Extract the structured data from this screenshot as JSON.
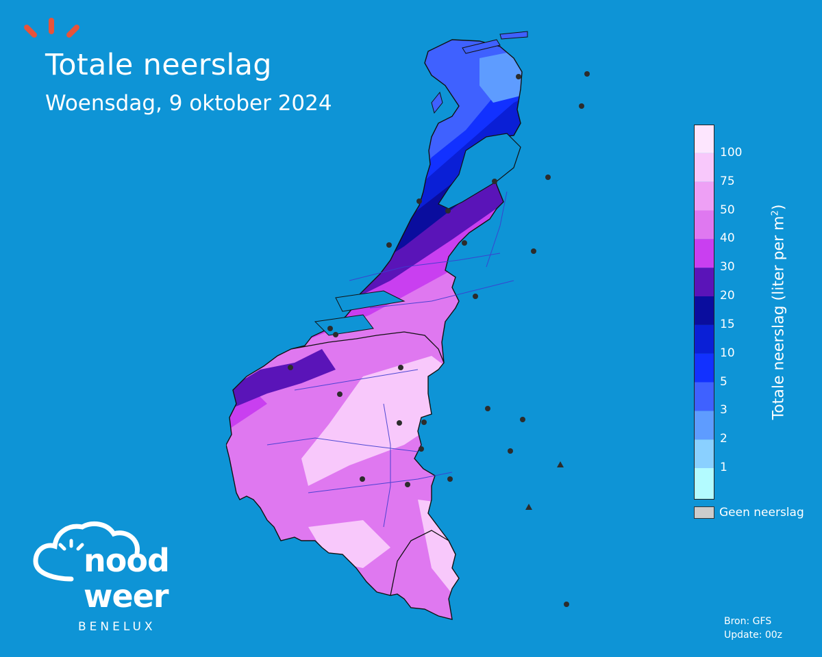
{
  "header": {
    "title": "Totale neerslag",
    "subtitle": "Woensdag, 9 oktober 2024"
  },
  "legend": {
    "title_prefix": "Totale neerslag (liter per m",
    "title_sup": "2",
    "title_suffix": ")",
    "ticks": [
      "1",
      "2",
      "3",
      "5",
      "10",
      "15",
      "20",
      "30",
      "40",
      "50",
      "75",
      "100"
    ],
    "colors": [
      "#b3fbff",
      "#8ad0ff",
      "#5e9cff",
      "#3f61ff",
      "#1231ff",
      "#0a1fd6",
      "#0a0d9e",
      "#5a14b8",
      "#c93ff0",
      "#df78f0",
      "#eea0f5",
      "#f8c8fb",
      "#fde6fe"
    ],
    "no_rain_label": "Geen neerslag",
    "no_rain_color": "#cccccc"
  },
  "logo": {
    "word1": "nood",
    "word2": "weer",
    "sub": "BENELUX",
    "sun_color": "#e8533a"
  },
  "source": {
    "line1": "Bron: GFS",
    "line2": "Update: 00z"
  },
  "map": {
    "precip_bands": [
      "3-5",
      "5-10",
      "10-15",
      "15-20",
      "20-30",
      "30-40",
      "40-50",
      "50-75"
    ]
  }
}
